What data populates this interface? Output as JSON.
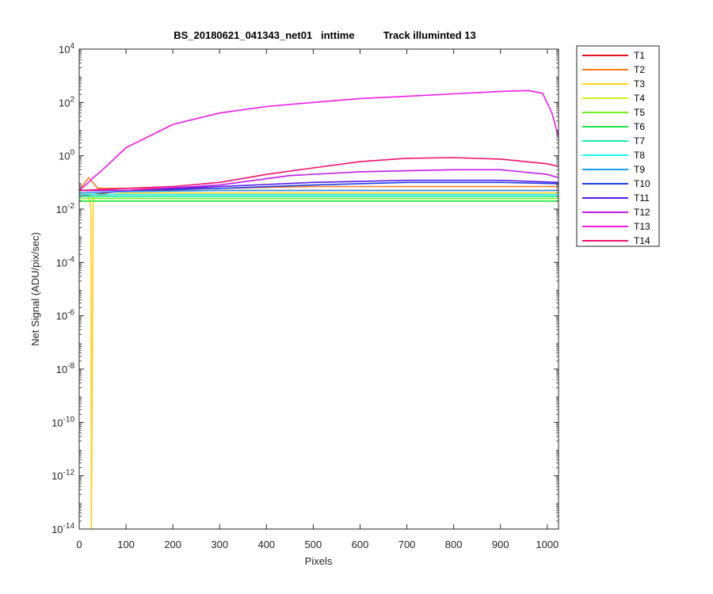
{
  "chart_data": {
    "type": "line",
    "title": "BS_20180621_041343_net01   inttime          Track illuminted 13",
    "xlabel": "Pixels",
    "ylabel": "Net Signal (ADU/pix/sec)",
    "xlim": [
      0,
      1024
    ],
    "ylim": [
      1e-14,
      10000
    ],
    "yscale": "log",
    "xticks": [
      "0",
      "100",
      "200",
      "300",
      "400",
      "500",
      "600",
      "700",
      "800",
      "900",
      "1000"
    ],
    "yticks": [
      {
        "base": "10",
        "exp": "4"
      },
      {
        "base": "10",
        "exp": "2"
      },
      {
        "base": "10",
        "exp": "0"
      },
      {
        "base": "10",
        "exp": "-2"
      },
      {
        "base": "10",
        "exp": "-4"
      },
      {
        "base": "10",
        "exp": "-6"
      },
      {
        "base": "10",
        "exp": "-8"
      },
      {
        "base": "10",
        "exp": "-10"
      },
      {
        "base": "10",
        "exp": "-12"
      },
      {
        "base": "10",
        "exp": "-14"
      }
    ],
    "grid": false,
    "legend_position": "outside-right",
    "series": [
      {
        "name": "T1",
        "color": "#e8101a",
        "x": [
          0,
          100,
          300,
          500,
          700,
          800,
          900,
          1000,
          1024
        ],
        "y": [
          0.03,
          0.05,
          0.05,
          0.05,
          0.05,
          0.05,
          0.05,
          0.05,
          0.05
        ]
      },
      {
        "name": "T2",
        "color": "#ff7a1a",
        "x": [
          0,
          20,
          40,
          100,
          300,
          500,
          700,
          900,
          1024
        ],
        "y": [
          0.05,
          0.15,
          0.06,
          0.06,
          0.06,
          0.07,
          0.07,
          0.07,
          0.07
        ]
      },
      {
        "name": "T3",
        "color": "#ffd21a",
        "x": [
          0,
          20,
          25,
          26,
          30,
          100,
          300,
          500,
          700,
          900,
          1024
        ],
        "y": [
          0.04,
          0.04,
          0.01,
          1e-14,
          0.03,
          0.04,
          0.04,
          0.04,
          0.04,
          0.04,
          0.04
        ]
      },
      {
        "name": "T4",
        "color": "#c9f21a",
        "x": [
          0,
          100,
          300,
          500,
          700,
          900,
          1024
        ],
        "y": [
          0.02,
          0.02,
          0.02,
          0.02,
          0.02,
          0.02,
          0.02
        ]
      },
      {
        "name": "T5",
        "color": "#6ef21a",
        "x": [
          0,
          100,
          300,
          500,
          700,
          900,
          1024
        ],
        "y": [
          0.025,
          0.025,
          0.025,
          0.025,
          0.025,
          0.025,
          0.025
        ]
      },
      {
        "name": "T6",
        "color": "#1ae84a",
        "x": [
          0,
          100,
          300,
          500,
          700,
          900,
          1024
        ],
        "y": [
          0.02,
          0.02,
          0.02,
          0.02,
          0.02,
          0.02,
          0.02
        ]
      },
      {
        "name": "T7",
        "color": "#1ae8a8",
        "x": [
          0,
          100,
          300,
          500,
          700,
          900,
          1024
        ],
        "y": [
          0.03,
          0.03,
          0.03,
          0.03,
          0.03,
          0.03,
          0.03
        ]
      },
      {
        "name": "T8",
        "color": "#1af2f2",
        "x": [
          0,
          100,
          300,
          500,
          700,
          900,
          1024
        ],
        "y": [
          0.035,
          0.035,
          0.035,
          0.035,
          0.035,
          0.035,
          0.035
        ]
      },
      {
        "name": "T9",
        "color": "#1a9ef2",
        "x": [
          0,
          100,
          300,
          500,
          700,
          900,
          1024
        ],
        "y": [
          0.04,
          0.045,
          0.05,
          0.05,
          0.05,
          0.05,
          0.05
        ]
      },
      {
        "name": "T10",
        "color": "#1a40e8",
        "x": [
          0,
          100,
          300,
          500,
          700,
          900,
          1024
        ],
        "y": [
          0.05,
          0.05,
          0.06,
          0.08,
          0.1,
          0.1,
          0.09
        ]
      },
      {
        "name": "T11",
        "color": "#5a1ae8",
        "x": [
          0,
          100,
          300,
          500,
          700,
          900,
          1024
        ],
        "y": [
          0.05,
          0.05,
          0.07,
          0.1,
          0.12,
          0.12,
          0.1
        ]
      },
      {
        "name": "T12",
        "color": "#c01ae8",
        "x": [
          0,
          100,
          300,
          450,
          600,
          800,
          900,
          1000,
          1024
        ],
        "y": [
          0.05,
          0.05,
          0.08,
          0.18,
          0.25,
          0.3,
          0.3,
          0.2,
          0.15
        ]
      },
      {
        "name": "T13",
        "color": "#f21ae8",
        "x": [
          0,
          20,
          30,
          50,
          100,
          200,
          300,
          400,
          500,
          600,
          700,
          800,
          900,
          960,
          990,
          1010,
          1024
        ],
        "y": [
          0.05,
          0.1,
          0.15,
          0.3,
          2,
          15,
          40,
          70,
          100,
          140,
          170,
          210,
          260,
          280,
          220,
          40,
          5
        ]
      },
      {
        "name": "T14",
        "color": "#f2106e",
        "x": [
          0,
          100,
          200,
          300,
          400,
          500,
          600,
          700,
          800,
          900,
          1000,
          1024
        ],
        "y": [
          0.05,
          0.06,
          0.07,
          0.1,
          0.2,
          0.35,
          0.6,
          0.8,
          0.85,
          0.75,
          0.5,
          0.4
        ]
      }
    ]
  }
}
